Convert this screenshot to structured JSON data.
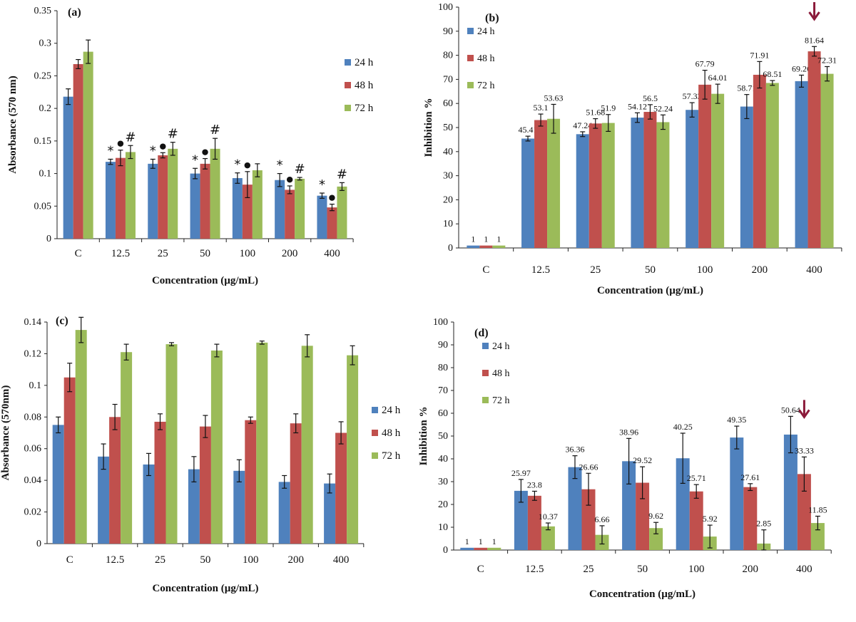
{
  "colors": {
    "s24": "#4f81bd",
    "s48": "#c0504d",
    "s72": "#9bbb59",
    "arrow": "#8b1a3a"
  },
  "chart_data": [
    {
      "id": "a",
      "type": "bar",
      "panel_label": "(a)",
      "ylabel": "Absorbance (570 nm)",
      "xlabel": "Concentration (µg/mL)",
      "categories": [
        "C",
        "12.5",
        "25",
        "50",
        "100",
        "200",
        "400"
      ],
      "ylim": [
        0,
        0.35
      ],
      "yticks": [
        0,
        0.05,
        0.1,
        0.15,
        0.2,
        0.25,
        0.3,
        0.35
      ],
      "ytick_labels": [
        "0",
        "0.05",
        "0.1",
        "0.15",
        "0.2",
        "0.25",
        "0.3",
        "0.35"
      ],
      "series": [
        {
          "name": "24 h",
          "values": [
            0.218,
            0.118,
            0.115,
            0.1,
            0.093,
            0.09,
            0.066
          ],
          "errors": [
            0.012,
            0.004,
            0.007,
            0.008,
            0.008,
            0.01,
            0.004
          ],
          "marker": [
            "",
            "*",
            "*",
            "*",
            "*",
            "*",
            "*"
          ]
        },
        {
          "name": "48 h",
          "values": [
            0.268,
            0.124,
            0.128,
            0.115,
            0.083,
            0.075,
            0.048
          ],
          "errors": [
            0.007,
            0.012,
            0.004,
            0.008,
            0.02,
            0.006,
            0.005
          ],
          "marker": [
            "",
            "●",
            "●",
            "●",
            "●",
            "●",
            "●"
          ]
        },
        {
          "name": "72 h",
          "values": [
            0.287,
            0.133,
            0.138,
            0.138,
            0.105,
            0.092,
            0.08
          ],
          "errors": [
            0.018,
            0.01,
            0.01,
            0.016,
            0.01,
            0.002,
            0.006
          ],
          "marker": [
            "",
            "#",
            "#",
            "#",
            "",
            "#",
            "#"
          ]
        }
      ],
      "data_labels": false,
      "legend": "right",
      "grid": false
    },
    {
      "id": "b",
      "type": "bar",
      "panel_label": "(b)",
      "ylabel": "Inhibition %",
      "xlabel": "Concentration (µg/mL)",
      "categories": [
        "C",
        "12.5",
        "25",
        "50",
        "100",
        "200",
        "400"
      ],
      "ylim": [
        0,
        100
      ],
      "yticks": [
        0,
        10,
        20,
        30,
        40,
        50,
        60,
        70,
        80,
        90,
        100
      ],
      "ytick_labels": [
        "0",
        "10",
        "20",
        "30",
        "40",
        "50",
        "60",
        "70",
        "80",
        "90",
        "100"
      ],
      "series": [
        {
          "name": "24 h",
          "values": [
            1,
            45.41,
            47.24,
            54.12,
            57.33,
            58.71,
            69.26
          ],
          "errors": [
            0,
            1,
            1,
            2,
            3,
            5,
            2.5
          ],
          "labels": [
            "1",
            "45.41",
            "47.24",
            "54.12",
            "57.33",
            "58.71",
            "69.26"
          ]
        },
        {
          "name": "48 h",
          "values": [
            1,
            53.1,
            51.68,
            56.5,
            67.79,
            71.91,
            81.64
          ],
          "errors": [
            0,
            2.5,
            2,
            3,
            6,
            5.5,
            2
          ],
          "labels": [
            "1",
            "53.1",
            "51.68",
            "56.5",
            "67.79",
            "71.91",
            "81.64"
          ]
        },
        {
          "name": "72 h",
          "values": [
            1,
            53.63,
            51.9,
            52.24,
            64.01,
            68.51,
            72.31
          ],
          "errors": [
            0,
            6,
            3.5,
            3,
            4,
            1,
            3
          ],
          "labels": [
            "1",
            "53.63",
            "51.9",
            "52.24",
            "64.01",
            "68.51",
            "72.31"
          ]
        }
      ],
      "data_labels": true,
      "arrow_category": "400",
      "legend": "top-left",
      "grid": false
    },
    {
      "id": "c",
      "type": "bar",
      "panel_label": "(c)",
      "ylabel": "Absorbance (570nm)",
      "xlabel": "Concentration (µg/mL)",
      "categories": [
        "C",
        "12.5",
        "25",
        "50",
        "100",
        "200",
        "400"
      ],
      "ylim": [
        0,
        0.14
      ],
      "yticks": [
        0,
        0.02,
        0.04,
        0.06,
        0.08,
        0.1,
        0.12,
        0.14
      ],
      "ytick_labels": [
        "0",
        "0.02",
        "0.04",
        "0.06",
        "0.08",
        "0.1",
        "0.12",
        "0.14"
      ],
      "series": [
        {
          "name": "24 h",
          "values": [
            0.075,
            0.055,
            0.05,
            0.047,
            0.046,
            0.039,
            0.038
          ],
          "errors": [
            0.005,
            0.008,
            0.007,
            0.008,
            0.007,
            0.004,
            0.006
          ]
        },
        {
          "name": "48 h",
          "values": [
            0.105,
            0.08,
            0.077,
            0.074,
            0.078,
            0.076,
            0.07
          ],
          "errors": [
            0.009,
            0.008,
            0.005,
            0.007,
            0.002,
            0.006,
            0.007
          ]
        },
        {
          "name": "72 h",
          "values": [
            0.135,
            0.121,
            0.126,
            0.122,
            0.127,
            0.125,
            0.119
          ],
          "errors": [
            0.008,
            0.005,
            0.001,
            0.004,
            0.001,
            0.007,
            0.006
          ]
        }
      ],
      "data_labels": false,
      "legend": "right",
      "grid": false
    },
    {
      "id": "d",
      "type": "bar",
      "panel_label": "(d)",
      "ylabel": "Inhibition %",
      "xlabel": "Concentration (µg/mL)",
      "categories": [
        "C",
        "12.5",
        "25",
        "50",
        "100",
        "200",
        "400"
      ],
      "ylim": [
        0,
        100
      ],
      "yticks": [
        0,
        10,
        20,
        30,
        40,
        50,
        60,
        70,
        80,
        90,
        100
      ],
      "ytick_labels": [
        "0",
        "10",
        "20",
        "30",
        "40",
        "50",
        "60",
        "70",
        "80",
        "90",
        "100"
      ],
      "series": [
        {
          "name": "24 h",
          "values": [
            1,
            25.97,
            36.36,
            38.96,
            40.25,
            49.35,
            50.64
          ],
          "errors": [
            0,
            5,
            5,
            10,
            11,
            5,
            8
          ],
          "labels": [
            "1",
            "25.97",
            "36.36",
            "38.96",
            "40.25",
            "49.35",
            "50.64"
          ]
        },
        {
          "name": "48 h",
          "values": [
            1,
            23.8,
            26.66,
            29.52,
            25.71,
            27.61,
            33.33
          ],
          "errors": [
            0,
            2,
            7,
            7,
            3,
            1.5,
            7.5
          ],
          "labels": [
            "1",
            "23.8",
            "26.66",
            "29.52",
            "25.71",
            "27.61",
            "33.33"
          ]
        },
        {
          "name": "72 h",
          "values": [
            1,
            10.37,
            6.66,
            9.62,
            5.92,
            2.85,
            11.85
          ],
          "errors": [
            0,
            1.5,
            4,
            2.5,
            5,
            6,
            3
          ],
          "labels": [
            "1",
            "10.37",
            "6.66",
            "9.62",
            "5.92",
            "2.85",
            "11.85"
          ]
        }
      ],
      "data_labels": true,
      "arrow_category": "400",
      "legend": "top-left",
      "grid": false
    }
  ]
}
